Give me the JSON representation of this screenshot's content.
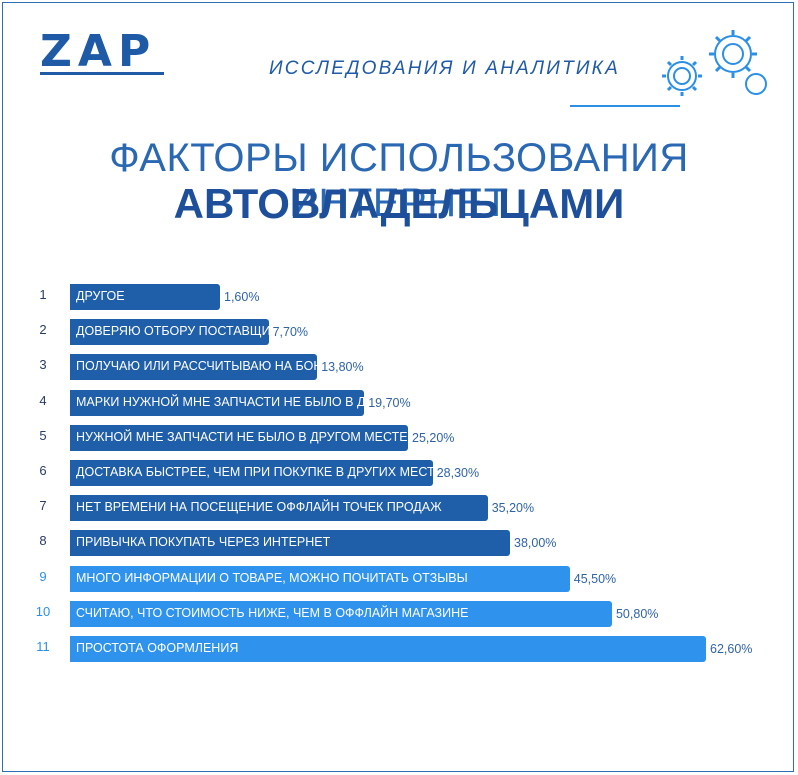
{
  "header": {
    "logo": "ZAP",
    "subtitle": "ИССЛЕДОВАНИЯ И АНАЛИТИКА"
  },
  "colors": {
    "dark_bar": "#1f5ea8",
    "light_bar": "#2f93ee",
    "accent": "#1f5aa6"
  },
  "chart_data": {
    "type": "bar",
    "orientation": "horizontal",
    "title": "ФАКТОРЫ ИСПОЛЬЗОВАНИЯ ИНТЕРНЕТ",
    "subtitle": "АВТОВЛАДЕЛЬЦАМИ",
    "xlim": [
      0,
      62.6
    ],
    "categories": [
      "ДРУГОЕ",
      "ДОВЕРЯЮ ОТБОРУ ПОСТАВЩИКОВ И ТОВАРОВ",
      "ПОЛУЧАЮ ИЛИ РАССЧИТЫВАЮ НА БОНУСЫ ЗА ПОКУПКУ",
      "МАРКИ НУЖНОЙ МНЕ ЗАПЧАСТИ НЕ БЫЛО В ДРУГОМ МЕСТЕ",
      "НУЖНОЙ МНЕ ЗАПЧАСТИ НЕ БЫЛО В ДРУГОМ МЕСТЕ",
      "ДОСТАВКА БЫСТРЕЕ, ЧЕМ ПРИ ПОКУПКЕ В ДРУГИХ МЕСТАХ",
      "НЕТ ВРЕМЕНИ НА ПОСЕЩЕНИЕ ОФФЛАЙН ТОЧЕК ПРОДАЖ",
      "ПРИВЫЧКА ПОКУПАТЬ ЧЕРЕЗ ИНТЕРНЕТ",
      "МНОГО ИНФОРМАЦИИ О ТОВАРЕ, МОЖНО ПОЧИТАТЬ ОТЗЫВЫ",
      "СЧИТАЮ, ЧТО СТОИМОСТЬ НИЖЕ, ЧЕМ В ОФФЛАЙН МАГАЗИНЕ",
      "ПРОСТОТА ОФОРМЛЕНИЯ"
    ],
    "numbers": [
      "1",
      "2",
      "3",
      "4",
      "5",
      "6",
      "7",
      "8",
      "9",
      "10",
      "11"
    ],
    "values": [
      1.6,
      7.7,
      13.8,
      19.7,
      25.2,
      28.3,
      35.2,
      38.0,
      45.5,
      50.8,
      62.6
    ],
    "value_labels": [
      "1,60%",
      "7,70%",
      "13,80%",
      "19,70%",
      "25,20%",
      "28,30%",
      "35,20%",
      "38,00%",
      "45,50%",
      "50,80%",
      "62,60%"
    ],
    "highlight": [
      false,
      false,
      false,
      false,
      false,
      false,
      false,
      false,
      true,
      true,
      true
    ]
  }
}
